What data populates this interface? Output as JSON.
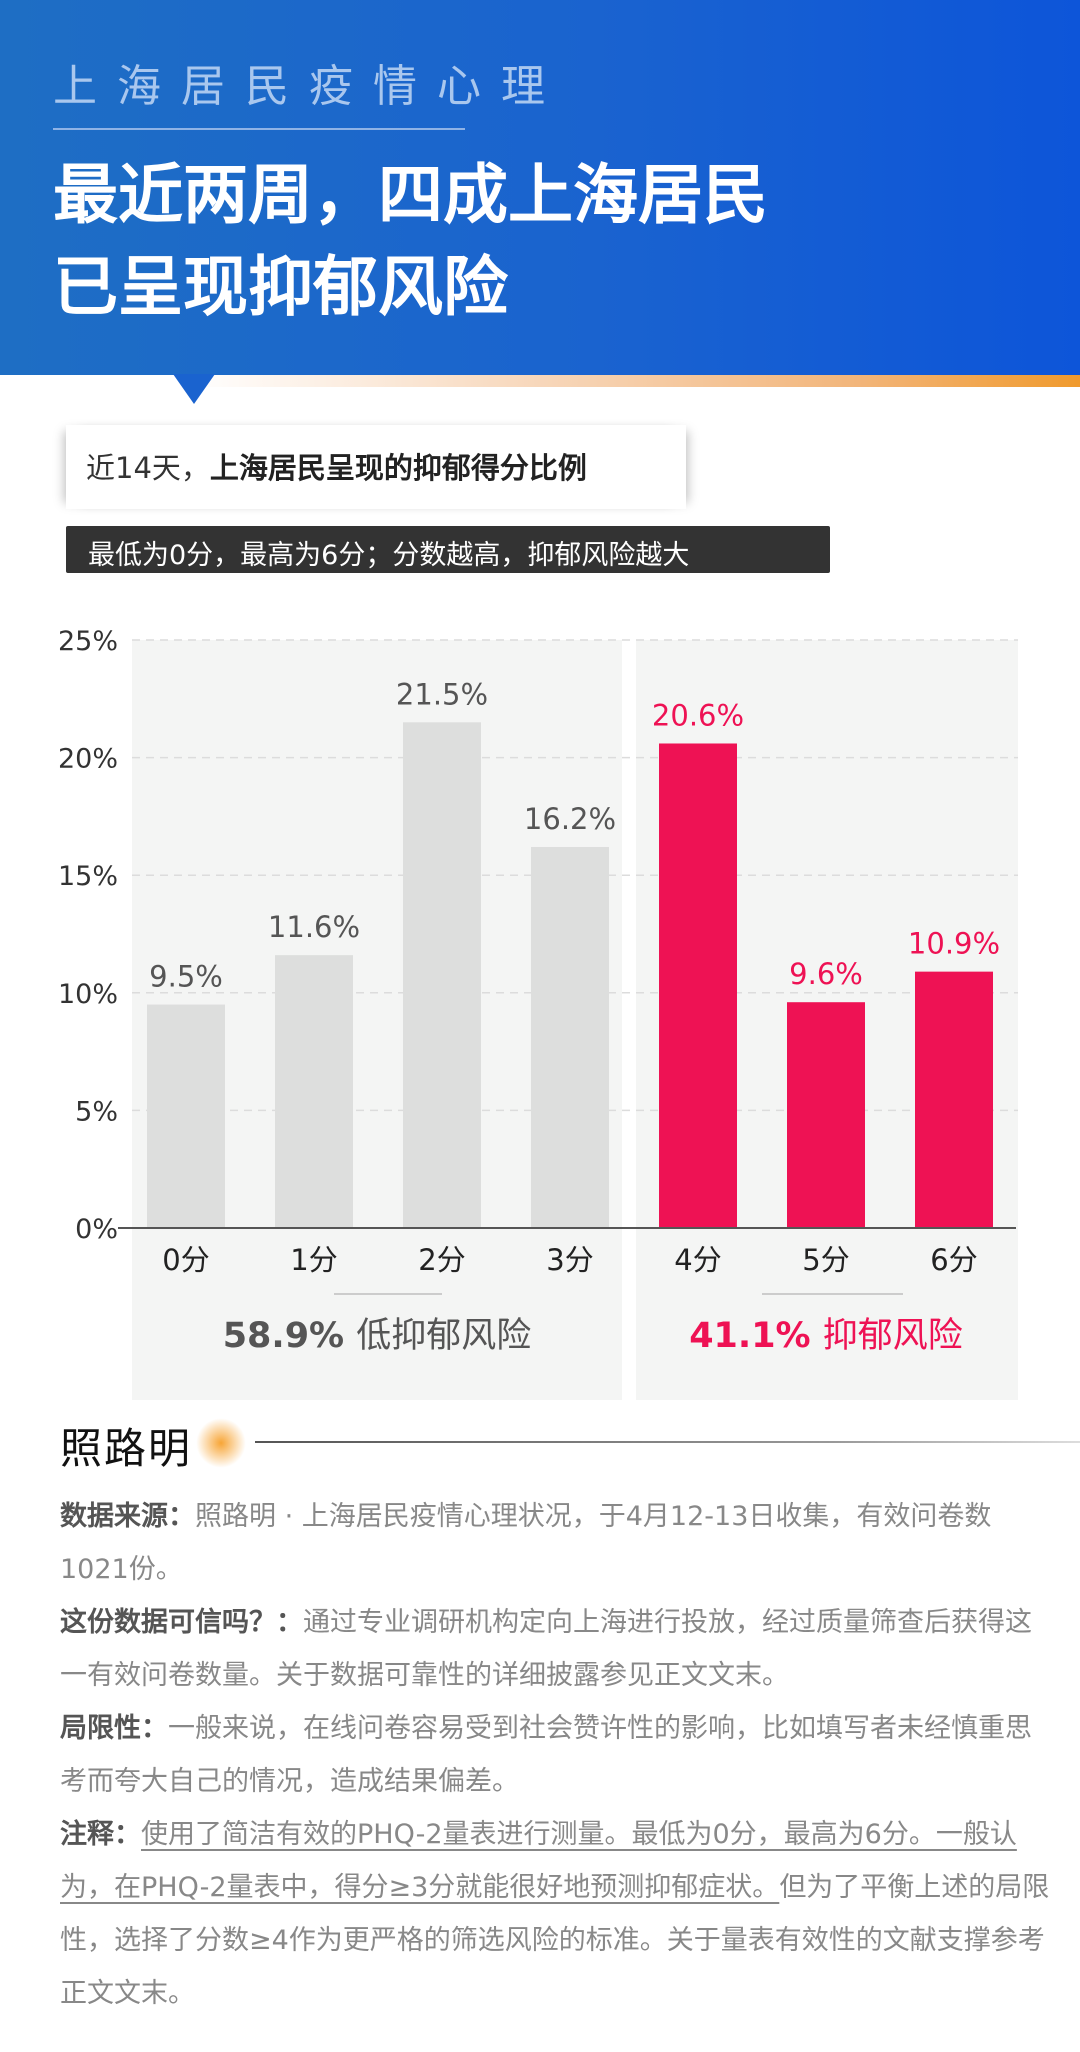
{
  "header": {
    "kicker": "上海居民疫情心理",
    "title_line1": "最近两周，四成上海居民",
    "title_line2": "已呈现抑郁风险",
    "bg_color": "#1a63cf"
  },
  "chart_label": {
    "prefix": "近14天，",
    "bold": "上海居民呈现的抑郁得分比例"
  },
  "chart_note": "最低为0分，最高为6分；分数越高，抑郁风险越大",
  "chart_data": {
    "type": "bar",
    "categories": [
      "0分",
      "1分",
      "2分",
      "3分",
      "4分",
      "5分",
      "6分"
    ],
    "values": [
      9.5,
      11.6,
      21.5,
      16.2,
      20.6,
      9.6,
      10.9
    ],
    "value_labels": [
      "9.5%",
      "11.6%",
      "21.5%",
      "16.2%",
      "20.6%",
      "9.6%",
      "10.9%"
    ],
    "ylim": [
      0,
      25
    ],
    "yticks": [
      "0%",
      "5%",
      "10%",
      "15%",
      "20%",
      "25%"
    ],
    "grid": true,
    "groups": [
      {
        "percent": "58.9%",
        "label": "低抑郁风险",
        "color": "#dddedd",
        "text_color": "#555555"
      },
      {
        "percent": "41.1%",
        "label": "抑郁风险",
        "color": "#ee1254",
        "text_color": "#ee1254"
      }
    ]
  },
  "footer": {
    "logo": "照路明",
    "source_label": "数据来源：",
    "source_text": "照路明 · 上海居民疫情心理状况，于4月12-13日收集，有效问卷数1021份。",
    "reliability_label": "这份数据可信吗？：",
    "reliability_text": "通过专业调研机构定向上海进行投放，经过质量筛查后获得这一有效问卷数量。关于数据可靠性的详细披露参见正文文末。",
    "limitation_label": "局限性：",
    "limitation_text": "一般来说，在线问卷容易受到社会赞许性的影响，比如填写者未经慎重思考而夸大自己的情况，造成结果偏差。",
    "note_label": "注释：",
    "note_underlined": "使用了简洁有效的PHQ-2量表进行测量。最低为0分，最高为6分。一般认为，在PHQ-2量表中，得分≥3分就能很好地预测抑郁症状。",
    "note_text": "但为了平衡上述的局限性，选择了分数≥4作为更严格的筛选风险的标准。关于量表有效性的文献支撑参考正文文末。"
  }
}
